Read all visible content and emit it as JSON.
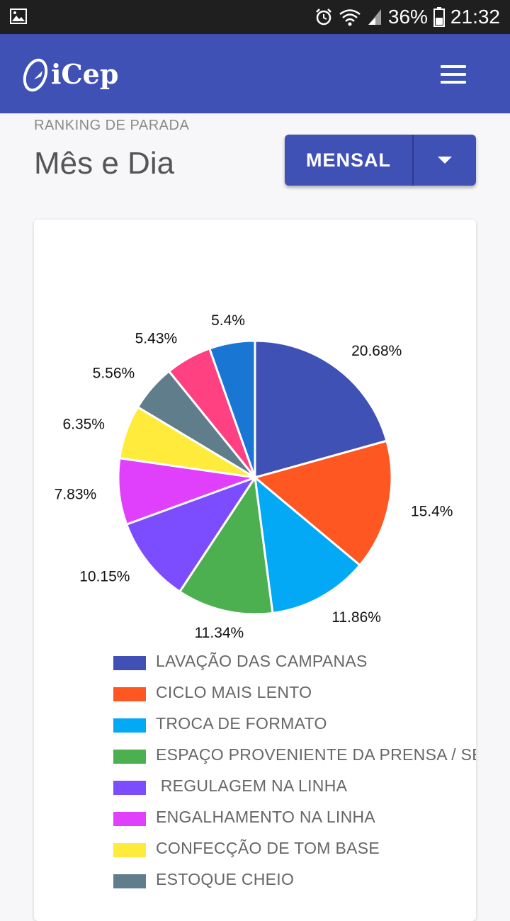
{
  "status_bar": {
    "battery": "36%",
    "time": "21:32"
  },
  "app_bar": {
    "logo_text": "iCep"
  },
  "header": {
    "section_label": "RANKING DE PARADA",
    "title": "Mês e Dia"
  },
  "period_selector": {
    "selected": "MENSAL"
  },
  "chart_data": {
    "type": "pie",
    "categories": [
      "LAVAÇÃO DAS CAMPANAS",
      "CICLO MAIS LENTO",
      "TROCA DE FORMATO",
      "ESPAÇO PROVENIENTE DA PRENSA / SEC",
      " REGULAGEM NA LINHA",
      "ENGALHAMENTO NA LINHA",
      "CONFECÇÃO DE TOM BASE",
      "ESTOQUE CHEIO",
      "",
      ""
    ],
    "values": [
      20.68,
      15.4,
      11.86,
      11.34,
      10.15,
      7.83,
      6.35,
      5.56,
      5.43,
      5.4
    ],
    "labels": [
      "20.68%",
      "15.4%",
      "11.86%",
      "11.34%",
      "10.15%",
      "7.83%",
      "6.35%",
      "5.56%",
      "5.43%",
      "5.4%"
    ],
    "colors": [
      "#3f51b5",
      "#ff5722",
      "#03a9f4",
      "#4caf50",
      "#7c4dff",
      "#e040fb",
      "#ffeb3b",
      "#607d8b",
      "#ff4081",
      "#1976d2"
    ]
  }
}
